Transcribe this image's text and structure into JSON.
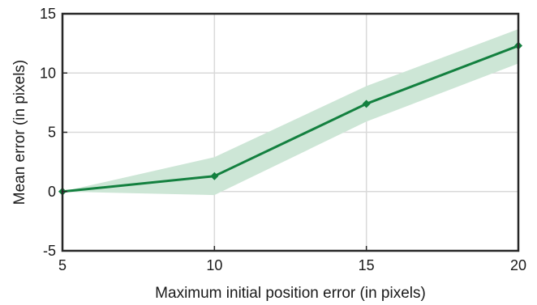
{
  "chart_data": {
    "type": "line",
    "title": "",
    "xlabel": "Maximum initial position error (in pixels)",
    "ylabel": "Mean error (in pixels)",
    "xlim": [
      5,
      20
    ],
    "ylim": [
      -5,
      15
    ],
    "x_ticks": [
      5,
      10,
      15,
      20
    ],
    "y_ticks": [
      -5,
      0,
      5,
      10,
      15
    ],
    "grid": true,
    "legend": "none",
    "series": [
      {
        "x": [
          5,
          10,
          15,
          20
        ],
        "values": [
          0,
          1.3,
          7.4,
          12.3
        ],
        "band_lower": [
          0,
          -0.3,
          5.9,
          10.8
        ],
        "band_upper": [
          0,
          2.9,
          8.9,
          13.7
        ],
        "color": "#13803f",
        "band_color": "#cde6d6",
        "marker": "diamond"
      }
    ]
  }
}
